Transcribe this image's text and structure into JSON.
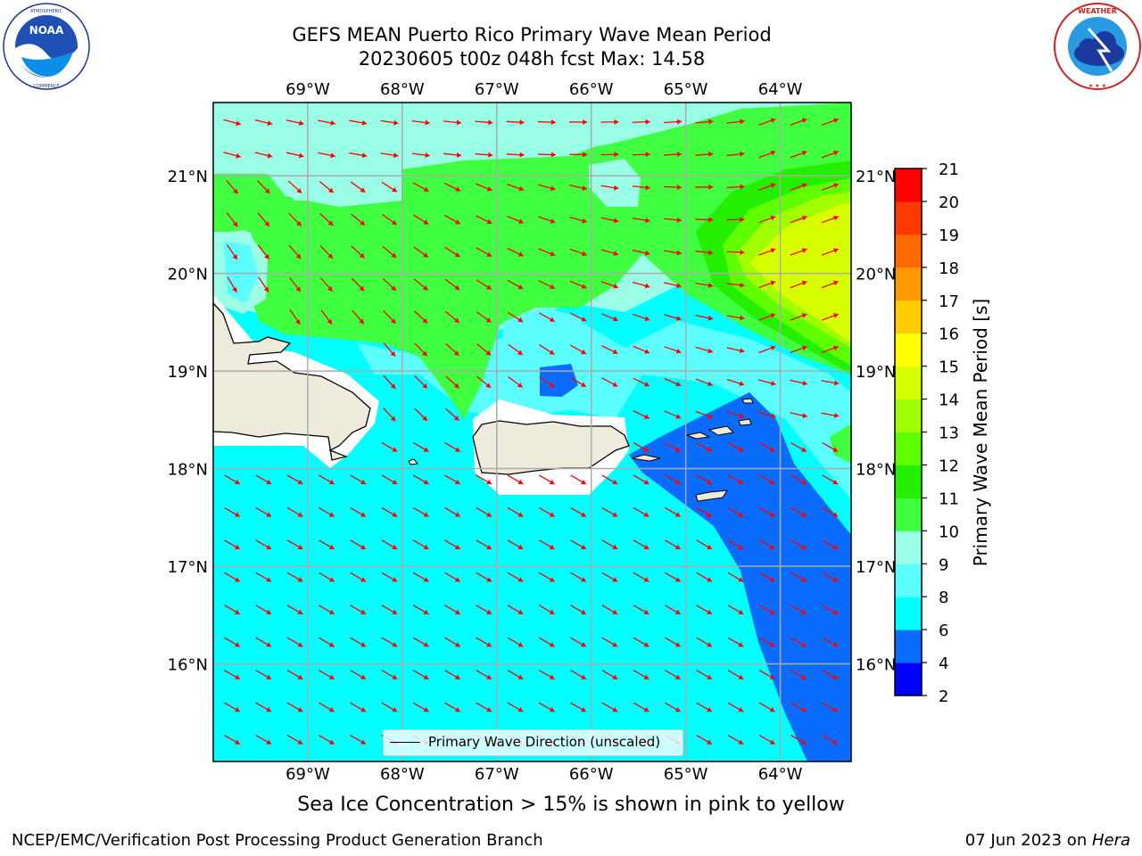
{
  "header": {
    "title_line1": "GEFS MEAN Puerto Rico Primary Wave Mean Period",
    "title_line2": "20230605 t00z 048h fcst   Max: 14.58"
  },
  "logos": {
    "left": {
      "name": "noaa-logo",
      "text": "NOAA",
      "ring_text": "NATIONAL OCEANIC AND ATMOSPHERIC ADMINISTRATION · U.S. DEPARTMENT OF COMMERCE"
    },
    "right": {
      "name": "nws-logo",
      "ring_text": "NATIONAL WEATHER SERVICE"
    }
  },
  "map": {
    "lon_ticks": [
      "69°W",
      "68°W",
      "67°W",
      "66°W",
      "65°W",
      "64°W"
    ],
    "lat_ticks": [
      "21°N",
      "20°N",
      "19°N",
      "18°N",
      "17°N",
      "16°N"
    ],
    "lon_range": [
      -70.0,
      -63.25
    ],
    "lat_range": [
      15.0,
      21.75
    ],
    "gridlines": true,
    "arrow_color": "#ff0000",
    "land_color": "#efebdc",
    "legend": {
      "label": "Primary Wave Direction (unscaled)",
      "placement": "bottom-center"
    }
  },
  "colorbar": {
    "label": "Primary Wave Mean Period [s]",
    "ticks": [
      "2",
      "4",
      "6",
      "8",
      "9",
      "10",
      "11",
      "12",
      "13",
      "14",
      "15",
      "16",
      "17",
      "18",
      "19",
      "20",
      "21"
    ],
    "colors": [
      "#0000ff",
      "#0a6cff",
      "#00ffff",
      "#5cfdff",
      "#9afde6",
      "#40ff40",
      "#25ef00",
      "#5fff00",
      "#a0ff00",
      "#d8ff00",
      "#ffff00",
      "#ffcc00",
      "#ff9a00",
      "#ff6a00",
      "#ff3a00",
      "#ff0000"
    ]
  },
  "notes": {
    "ice": "Sea Ice Concentration > 15% is shown in pink to yellow"
  },
  "footer": {
    "left": "NCEP/EMC/Verification Post Processing Product Generation Branch",
    "right_prefix": "07 Jun 2023 on ",
    "right_italic": "Hera"
  }
}
